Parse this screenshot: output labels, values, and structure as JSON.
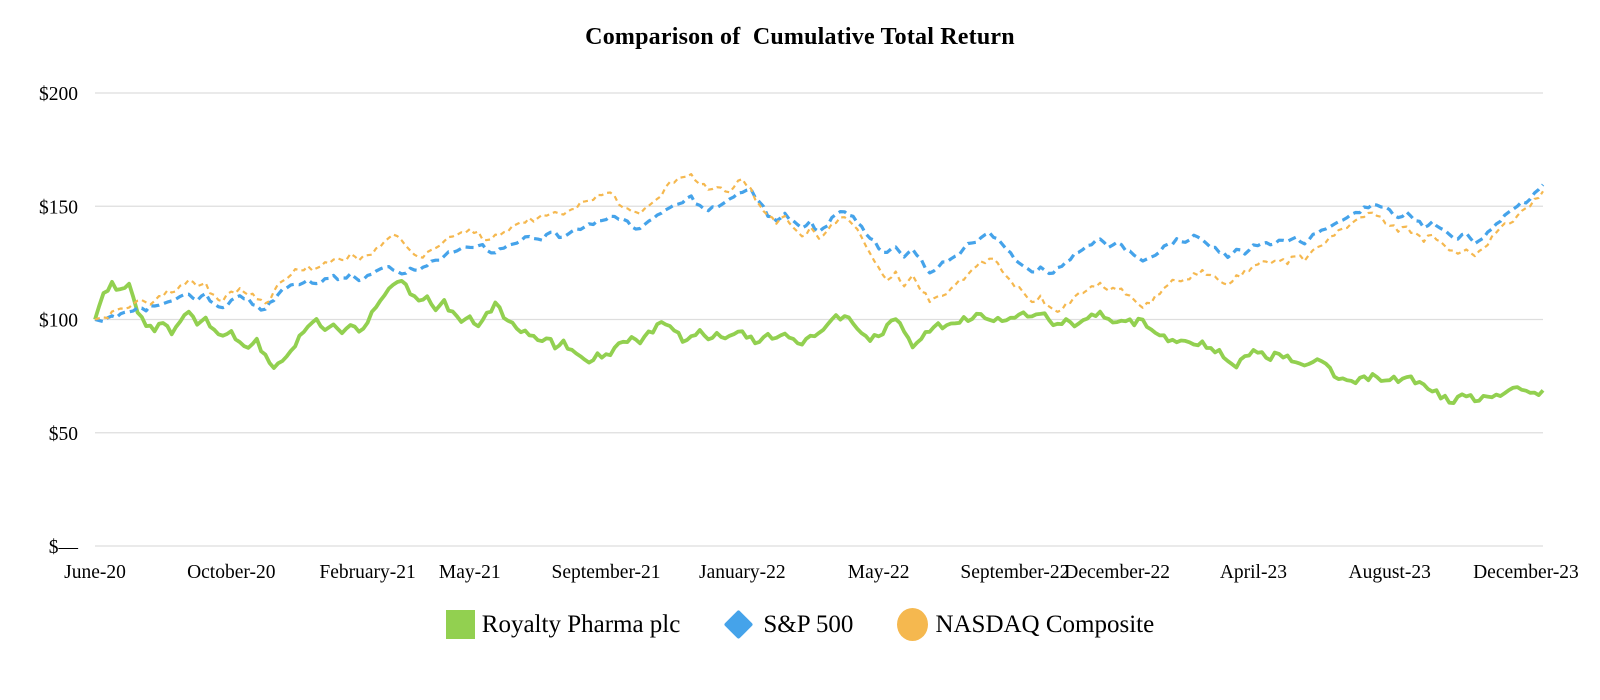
{
  "chart_data": {
    "type": "line",
    "title": "Comparison of  Cumulative Total Return",
    "xlabel": "",
    "ylabel": "",
    "ylim": [
      0,
      200
    ],
    "grid": "horizontal",
    "grid_color": "#DEDEDE",
    "legend_position": "bottom",
    "y_ticks": [
      {
        "label": "$200",
        "value": 200
      },
      {
        "label": "$150",
        "value": 150
      },
      {
        "label": "$100",
        "value": 100
      },
      {
        "label": "$50",
        "value": 50
      },
      {
        "label": "$—",
        "value": 0
      }
    ],
    "x_ticks": [
      {
        "label": "June-20",
        "month": 0
      },
      {
        "label": "October-20",
        "month": 4
      },
      {
        "label": "February-21",
        "month": 8
      },
      {
        "label": "May-21",
        "month": 11
      },
      {
        "label": "September-21",
        "month": 15
      },
      {
        "label": "January-22",
        "month": 19
      },
      {
        "label": "May-22",
        "month": 23
      },
      {
        "label": "September-22",
        "month": 27
      },
      {
        "label": "December-22",
        "month": 30
      },
      {
        "label": "April-23",
        "month": 34
      },
      {
        "label": "August-23",
        "month": 38
      },
      {
        "label": "December-23",
        "month": 42
      }
    ],
    "t_step_months": 0.25,
    "series": [
      {
        "name": "Royalty Pharma plc",
        "color": "#92D050",
        "line_style": "solid",
        "marker": "square",
        "start_value": 100,
        "end_value": 68,
        "values": [
          100,
          112,
          116,
          113,
          115,
          103,
          97,
          95,
          99,
          94,
          100,
          103,
          98,
          101,
          95,
          92,
          95,
          90,
          87,
          91,
          84,
          79,
          82,
          87,
          92,
          97,
          100,
          96,
          98,
          94,
          97,
          95,
          99,
          105,
          111,
          116,
          118,
          112,
          108,
          110,
          105,
          108,
          103,
          99,
          101,
          97,
          103,
          107,
          101,
          98,
          95,
          93,
          91,
          92,
          88,
          90,
          87,
          83,
          81,
          85,
          84,
          87,
          90,
          92,
          90,
          94,
          97,
          98,
          95,
          91,
          93,
          95,
          92,
          94,
          91,
          93,
          95,
          92,
          90,
          93,
          91,
          94,
          92,
          89,
          92,
          95,
          98,
          101,
          102,
          98,
          94,
          91,
          93,
          97,
          101,
          95,
          88,
          92,
          95,
          98,
          97,
          99,
          101,
          100,
          102,
          100,
          101,
          99,
          101,
          103,
          101,
          103,
          100,
          98,
          100,
          97,
          100,
          102,
          103,
          101,
          99,
          100,
          98,
          100,
          96,
          93,
          91,
          90,
          91,
          89,
          90,
          88,
          86,
          82,
          78,
          84,
          86,
          85,
          83,
          85,
          84,
          82,
          80,
          82,
          81,
          78,
          74,
          73,
          72,
          74,
          75,
          73,
          74,
          73,
          75,
          72,
          71,
          69,
          66,
          64,
          65,
          67,
          64,
          66,
          65,
          67,
          69,
          70,
          68,
          67,
          68
        ]
      },
      {
        "name": "S&P 500",
        "color": "#45A3EA",
        "line_style": "dashed",
        "marker": "diamond",
        "start_value": 100,
        "end_value": 159,
        "values": [
          100,
          99,
          101,
          102,
          104,
          105,
          104,
          106,
          107,
          108,
          110,
          111,
          109,
          111,
          107,
          105,
          108,
          110,
          109,
          106,
          104,
          109,
          113,
          115,
          116,
          117,
          116,
          118,
          119,
          118,
          120,
          117,
          119,
          121,
          123,
          122,
          120,
          122,
          121,
          124,
          126,
          128,
          130,
          131,
          132,
          133,
          131,
          130,
          132,
          133,
          135,
          136,
          135,
          137,
          138,
          136,
          139,
          140,
          142,
          143,
          144,
          146,
          144,
          141,
          140,
          143,
          146,
          149,
          151,
          152,
          154,
          150,
          148,
          150,
          152,
          154,
          156,
          157,
          152,
          146,
          144,
          147,
          143,
          140,
          143,
          139,
          142,
          146,
          148,
          146,
          141,
          136,
          132,
          129,
          132,
          128,
          131,
          126,
          121,
          123,
          126,
          128,
          131,
          134,
          136,
          138,
          136,
          131,
          127,
          124,
          121,
          123,
          120,
          123,
          126,
          129,
          131,
          133,
          135,
          132,
          134,
          131,
          128,
          126,
          128,
          130,
          133,
          135,
          134,
          137,
          135,
          132,
          130,
          128,
          131,
          129,
          133,
          134,
          133,
          135,
          134,
          136,
          134,
          137,
          139,
          141,
          143,
          145,
          147,
          149,
          151,
          150,
          148,
          145,
          147,
          144,
          141,
          143,
          140,
          137,
          136,
          138,
          134,
          136,
          140,
          144,
          147,
          150,
          152,
          156,
          159
        ]
      },
      {
        "name": "NASDAQ Composite",
        "color": "#F5B84F",
        "line_style": "dashed",
        "marker": "circle",
        "start_value": 100,
        "end_value": 157,
        "values": [
          100,
          101,
          103,
          105,
          106,
          108,
          107,
          109,
          111,
          112,
          115,
          118,
          114,
          116,
          110,
          108,
          112,
          113,
          111,
          109,
          107,
          112,
          117,
          120,
          122,
          123,
          122,
          125,
          127,
          126,
          129,
          126,
          128,
          131,
          134,
          137,
          135,
          130,
          127,
          130,
          132,
          134,
          137,
          139,
          140,
          138,
          135,
          137,
          139,
          141,
          143,
          145,
          144,
          146,
          148,
          146,
          149,
          151,
          153,
          155,
          156,
          154,
          150,
          148,
          147,
          150,
          154,
          158,
          161,
          163,
          164,
          160,
          157,
          158,
          156,
          159,
          162,
          158,
          150,
          146,
          142,
          145,
          140,
          136,
          140,
          136,
          139,
          143,
          145,
          142,
          136,
          129,
          123,
          118,
          121,
          115,
          119,
          113,
          108,
          110,
          112,
          115,
          118,
          122,
          125,
          127,
          124,
          119,
          115,
          112,
          108,
          110,
          106,
          104,
          107,
          110,
          112,
          114,
          116,
          112,
          114,
          111,
          108,
          106,
          108,
          111,
          115,
          118,
          117,
          120,
          122,
          119,
          117,
          116,
          119,
          121,
          124,
          125,
          124,
          126,
          125,
          128,
          126,
          130,
          133,
          136,
          139,
          141,
          143,
          145,
          147,
          145,
          142,
          139,
          141,
          138,
          135,
          137,
          134,
          131,
          129,
          131,
          128,
          131,
          136,
          140,
          143,
          146,
          149,
          153,
          157
        ]
      }
    ]
  }
}
